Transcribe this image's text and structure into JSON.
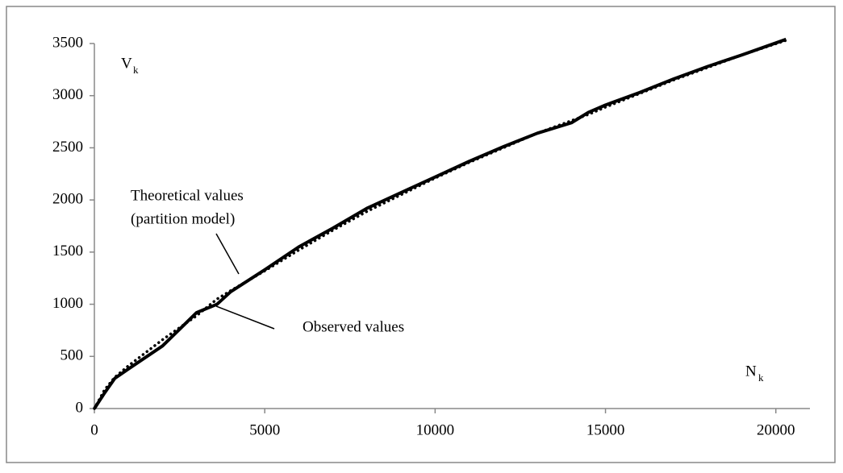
{
  "chart_data": {
    "type": "line",
    "x": [
      0,
      300,
      600,
      1000,
      2000,
      3000,
      3600,
      4000,
      5000,
      6000,
      7000,
      8000,
      9000,
      10000,
      11000,
      12000,
      13000,
      14000,
      14500,
      15000,
      16000,
      17000,
      18000,
      19000,
      20300
    ],
    "series": [
      {
        "name": "Observed values",
        "color": "#000000",
        "dash": "solid",
        "values": [
          0,
          150,
          290,
          380,
          600,
          920,
          1000,
          1120,
          1330,
          1550,
          1730,
          1920,
          2070,
          2220,
          2370,
          2510,
          2640,
          2740,
          2840,
          2910,
          3030,
          3160,
          3280,
          3390,
          3540
        ]
      },
      {
        "name": "Theoretical values",
        "name2": "(partition model)",
        "color": "#000000",
        "dash": "dotted",
        "values": [
          0,
          180,
          300,
          410,
          660,
          890,
          1050,
          1130,
          1320,
          1520,
          1710,
          1890,
          2050,
          2210,
          2360,
          2500,
          2640,
          2760,
          2820,
          2890,
          3020,
          3150,
          3270,
          3390,
          3530
        ]
      }
    ],
    "ylabel": "V",
    "ylabel_sub": "k",
    "xlabel": "N",
    "xlabel_sub": "k",
    "xlim": [
      0,
      21000
    ],
    "xticks": [
      0,
      5000,
      10000,
      15000,
      20000
    ],
    "ylim": [
      0,
      3500
    ],
    "yticks": [
      0,
      500,
      1000,
      1500,
      2000,
      2500,
      3000,
      3500
    ],
    "grid": false
  }
}
